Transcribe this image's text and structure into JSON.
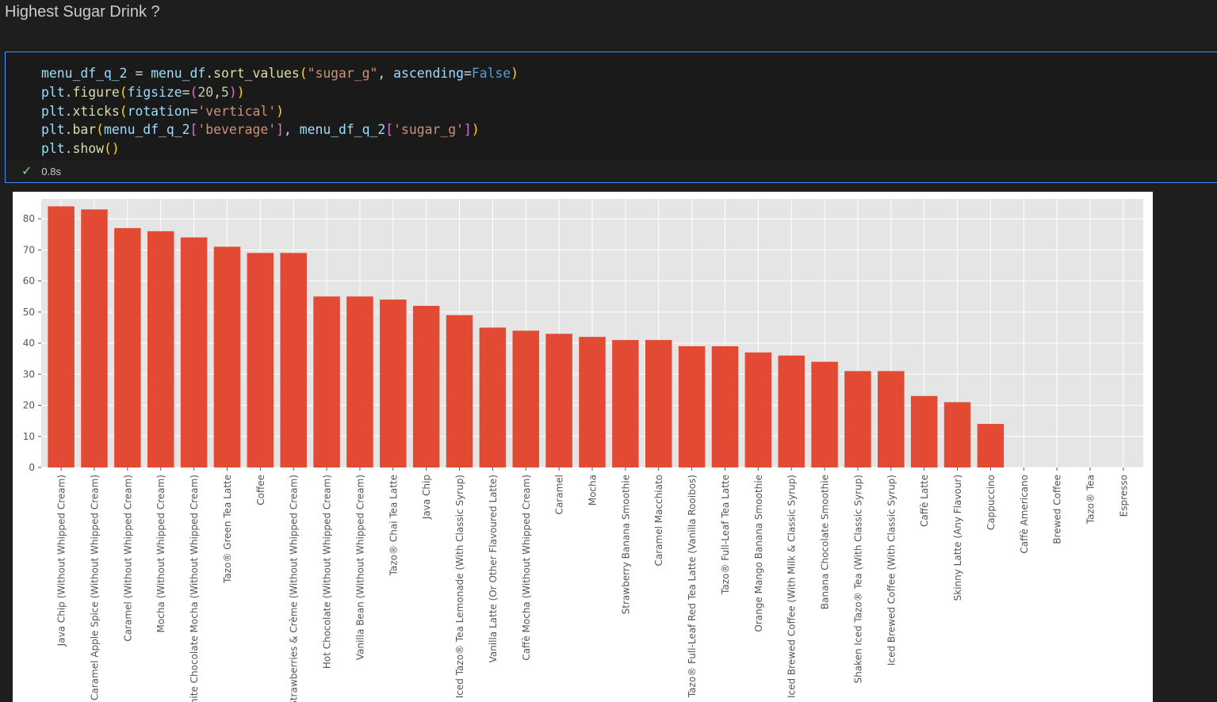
{
  "markdown": {
    "heading": "Highest Sugar Drink ?"
  },
  "cell": {
    "code_lines": [
      "menu_df_q_2 = menu_df.sort_values(\"sugar_g\", ascending=False)",
      "plt.figure(figsize=(20,5))",
      "plt.xticks(rotation='vertical')",
      "plt.bar(menu_df_q_2['beverage'], menu_df_q_2['sugar_g'])",
      "plt.show()"
    ],
    "status_icon": "check-icon",
    "exec_time": "0.8s"
  },
  "colors": {
    "bar": "#e24a33",
    "plot_bg": "#e5e5e5",
    "grid": "#ffffff",
    "tick_text": "#555555"
  },
  "chart_data": {
    "type": "bar",
    "title": "",
    "xlabel": "",
    "ylabel": "",
    "ylim": [
      0,
      86.4
    ],
    "yticks": [
      0,
      10,
      20,
      30,
      40,
      50,
      60,
      70,
      80
    ],
    "grid": true,
    "categories": [
      "Java Chip (Without Whipped Cream)",
      "Caramel Apple Spice (Without Whipped Cream)",
      "Caramel (Without Whipped Cream)",
      "Mocha (Without Whipped Cream)",
      "White Chocolate Mocha (Without Whipped Cream)",
      "Tazo® Green Tea Latte",
      "Coffee",
      "Strawberries & Crème (Without Whipped Cream)",
      "Hot Chocolate (Without Whipped Cream)",
      "Vanilla Bean (Without Whipped Cream)",
      "Tazo® Chai Tea Latte",
      "Java Chip",
      "Iced Tazo® Tea Lemonade (With Classic Syrup)",
      "Vanilla Latte (Or Other Flavoured Latte)",
      "Caffè Mocha (Without Whipped Cream)",
      "Caramel",
      "Mocha",
      "Strawberry Banana Smoothie",
      "Caramel Macchiato",
      "Tazo® Full-Leaf Red Tea Latte (Vanilla Rooibos)",
      "Tazo® Full-Leaf Tea Latte",
      "Orange Mango Banana Smoothie",
      "Iced Brewed Coffee (With Milk & Classic Syrup)",
      "Banana Chocolate Smoothie",
      "Shaken Iced Tazo® Tea (With Classic Syrup)",
      "Iced Brewed Coffee (With Classic Syrup)",
      "Caffè Latte",
      "Skinny Latte (Any Flavour)",
      "Cappuccino",
      "Caffè Americano",
      "Brewed Coffee",
      "Tazo® Tea",
      "Espresso"
    ],
    "values": [
      84,
      83,
      77,
      76,
      74,
      71,
      69,
      69,
      55,
      55,
      54,
      52,
      49,
      45,
      44,
      43,
      42,
      41,
      41,
      39,
      39,
      37,
      36,
      34,
      31,
      31,
      23,
      21,
      14,
      0,
      0,
      0,
      0
    ]
  }
}
